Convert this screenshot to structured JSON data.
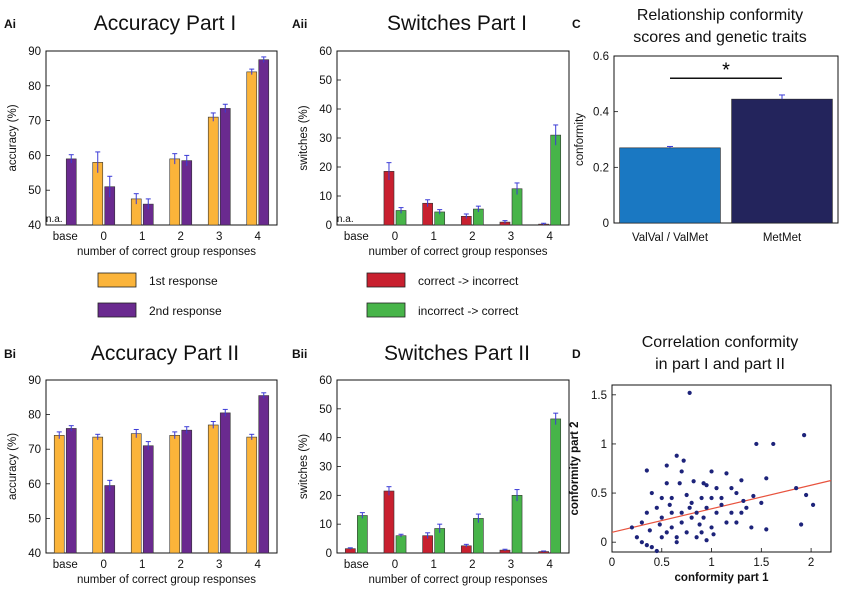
{
  "colors": {
    "first_response": "#fbb43a",
    "second_response": "#6a2a8f",
    "correct_to_incorrect": "#c8202f",
    "incorrect_to_correct": "#47b449",
    "valval": "#1a78c2",
    "metmet": "#23245c",
    "scatter": "#1d237a",
    "fit": "#e8533e",
    "error": "#3b3bd6"
  },
  "legends": {
    "accuracy": [
      "1st response",
      "2nd response"
    ],
    "switches": [
      "correct -> incorrect",
      "incorrect -> correct"
    ]
  },
  "chart_data": [
    {
      "id": "Ai",
      "panel_label": "Ai",
      "type": "bar",
      "title": "Accuracy Part I",
      "categories": [
        "base",
        "0",
        "1",
        "2",
        "3",
        "4"
      ],
      "xlabel": "number of correct group responses",
      "ylabel": "accuracy (%)",
      "ylim": [
        40,
        90
      ],
      "yticks": [
        40,
        50,
        60,
        70,
        80,
        90
      ],
      "annotation": "n.a.",
      "series": [
        {
          "name": "1st response",
          "values": [
            null,
            58,
            47.5,
            59,
            71,
            84
          ],
          "errors": [
            null,
            3,
            1.5,
            1.5,
            1.2,
            0.8
          ]
        },
        {
          "name": "2nd response",
          "values": [
            59,
            51,
            46,
            58.5,
            73.5,
            87.5
          ],
          "errors": [
            1.2,
            3,
            1.5,
            1.5,
            1.2,
            0.8
          ]
        }
      ]
    },
    {
      "id": "Aii",
      "panel_label": "Aii",
      "type": "bar",
      "title": "Switches Part I",
      "categories": [
        "base",
        "0",
        "1",
        "2",
        "3",
        "4"
      ],
      "xlabel": "number of correct group responses",
      "ylabel": "switches (%)",
      "ylim": [
        0,
        60
      ],
      "yticks": [
        0,
        10,
        20,
        30,
        40,
        50,
        60
      ],
      "annotation": "n.a.",
      "series": [
        {
          "name": "correct -> incorrect",
          "values": [
            null,
            18.5,
            7.5,
            3,
            1,
            0.3
          ],
          "errors": [
            null,
            3,
            1.2,
            0.8,
            0.5,
            0.3
          ]
        },
        {
          "name": "incorrect -> correct",
          "values": [
            null,
            5,
            4.5,
            5.5,
            12.5,
            31
          ],
          "errors": [
            null,
            1,
            0.8,
            1,
            2,
            3.5
          ]
        }
      ]
    },
    {
      "id": "C",
      "panel_label": "C",
      "type": "bar",
      "title": [
        "Relationship conformity",
        "scores and genetic traits"
      ],
      "categories": [
        "ValVal / ValMet",
        "MetMet"
      ],
      "xlabel": "",
      "ylabel": "conformity",
      "ylim": [
        0,
        0.6
      ],
      "yticks": [
        "0",
        "0.2",
        "0.4",
        "0.6"
      ],
      "values": [
        0.27,
        0.445
      ],
      "errors": [
        0.005,
        0.015
      ],
      "significance": "*"
    },
    {
      "id": "Bi",
      "panel_label": "Bi",
      "type": "bar",
      "title": "Accuracy Part II",
      "categories": [
        "base",
        "0",
        "1",
        "2",
        "3",
        "4"
      ],
      "xlabel": "number of correct group responses",
      "ylabel": "accuracy (%)",
      "ylim": [
        40,
        90
      ],
      "yticks": [
        40,
        50,
        60,
        70,
        80,
        90
      ],
      "series": [
        {
          "name": "1st response",
          "values": [
            74,
            73.5,
            74.5,
            74,
            77,
            73.5
          ],
          "errors": [
            1,
            0.8,
            1.2,
            1,
            1,
            0.8
          ]
        },
        {
          "name": "2nd response",
          "values": [
            76,
            59.5,
            71,
            75.5,
            80.5,
            85.5
          ],
          "errors": [
            0.8,
            1.5,
            1.2,
            1,
            1,
            0.8
          ]
        }
      ]
    },
    {
      "id": "Bii",
      "panel_label": "Bii",
      "type": "bar",
      "title": "Switches Part II",
      "categories": [
        "base",
        "0",
        "1",
        "2",
        "3",
        "4"
      ],
      "xlabel": "number of correct group responses",
      "ylabel": "switches (%)",
      "ylim": [
        0,
        60
      ],
      "yticks": [
        0,
        10,
        20,
        30,
        40,
        50,
        60
      ],
      "series": [
        {
          "name": "correct -> incorrect",
          "values": [
            1.5,
            21.5,
            6,
            2.5,
            1,
            0.5
          ],
          "errors": [
            0.3,
            1.5,
            1,
            0.5,
            0.3,
            0.2
          ]
        },
        {
          "name": "incorrect -> correct",
          "values": [
            13,
            6,
            8.5,
            12,
            20,
            46.5
          ],
          "errors": [
            1,
            0.5,
            1.5,
            1.5,
            2,
            2
          ]
        }
      ]
    },
    {
      "id": "D",
      "panel_label": "D",
      "type": "scatter",
      "title": [
        "Correlation conformity",
        "in part I and part II"
      ],
      "xlabel": "conformity part 1",
      "ylabel": "conformity part 2",
      "xlim": [
        0,
        2.2
      ],
      "ylim": [
        -0.1,
        1.6
      ],
      "xticks": [
        "0",
        "0.5",
        "1",
        "1.5",
        "2"
      ],
      "yticks": [
        "0",
        "0.5",
        "1",
        "1.5"
      ],
      "fit_line": {
        "intercept": 0.1,
        "slope": 0.24
      },
      "points": [
        [
          0.78,
          1.52
        ],
        [
          0.65,
          0.88
        ],
        [
          0.72,
          0.83
        ],
        [
          0.55,
          0.78
        ],
        [
          0.7,
          0.72
        ],
        [
          0.35,
          0.73
        ],
        [
          0.82,
          0.62
        ],
        [
          0.92,
          0.6
        ],
        [
          0.95,
          0.58
        ],
        [
          1.3,
          0.63
        ],
        [
          1.55,
          0.65
        ],
        [
          1.45,
          1.0
        ],
        [
          1.62,
          1.0
        ],
        [
          1.93,
          1.09
        ],
        [
          1.85,
          0.55
        ],
        [
          1.95,
          0.48
        ],
        [
          2.02,
          0.38
        ],
        [
          1.9,
          0.18
        ],
        [
          1.55,
          0.13
        ],
        [
          1.25,
          0.2
        ],
        [
          0.2,
          0.15
        ],
        [
          0.25,
          0.05
        ],
        [
          0.3,
          0.0
        ],
        [
          0.35,
          -0.03
        ],
        [
          0.4,
          -0.05
        ],
        [
          0.45,
          -0.09
        ],
        [
          0.5,
          0.05
        ],
        [
          0.55,
          0.1
        ],
        [
          0.6,
          0.15
        ],
        [
          0.65,
          0.0
        ],
        [
          0.7,
          0.2
        ],
        [
          0.75,
          0.1
        ],
        [
          0.8,
          0.25
        ],
        [
          0.85,
          0.3
        ],
        [
          0.9,
          0.1
        ],
        [
          0.95,
          0.35
        ],
        [
          1.0,
          0.15
        ],
        [
          1.05,
          0.3
        ],
        [
          1.1,
          0.45
        ],
        [
          1.15,
          0.2
        ],
        [
          1.2,
          0.3
        ],
        [
          1.25,
          0.5
        ],
        [
          1.35,
          0.35
        ],
        [
          1.4,
          0.15
        ],
        [
          1.5,
          0.4
        ],
        [
          1.05,
          0.55
        ],
        [
          0.9,
          0.45
        ],
        [
          0.8,
          0.4
        ],
        [
          0.6,
          0.45
        ],
        [
          0.5,
          0.25
        ],
        [
          0.45,
          0.35
        ],
        [
          0.4,
          0.5
        ],
        [
          0.55,
          0.6
        ],
        [
          0.7,
          0.3
        ],
        [
          1.0,
          0.45
        ],
        [
          1.1,
          0.38
        ],
        [
          1.2,
          0.55
        ],
        [
          0.35,
          0.3
        ],
        [
          0.3,
          0.2
        ],
        [
          0.65,
          0.05
        ],
        [
          0.85,
          0.05
        ],
        [
          1.3,
          0.3
        ],
        [
          1.0,
          0.72
        ],
        [
          0.92,
          0.25
        ],
        [
          0.6,
          0.3
        ],
        [
          0.5,
          0.45
        ],
        [
          1.15,
          0.7
        ],
        [
          0.75,
          0.48
        ],
        [
          1.42,
          0.47
        ],
        [
          0.38,
          0.12
        ],
        [
          0.48,
          0.18
        ],
        [
          0.88,
          0.18
        ],
        [
          1.02,
          0.08
        ],
        [
          0.68,
          0.6
        ],
        [
          0.58,
          0.38
        ],
        [
          0.78,
          0.35
        ],
        [
          1.32,
          0.42
        ],
        [
          0.95,
          0.02
        ]
      ]
    }
  ]
}
